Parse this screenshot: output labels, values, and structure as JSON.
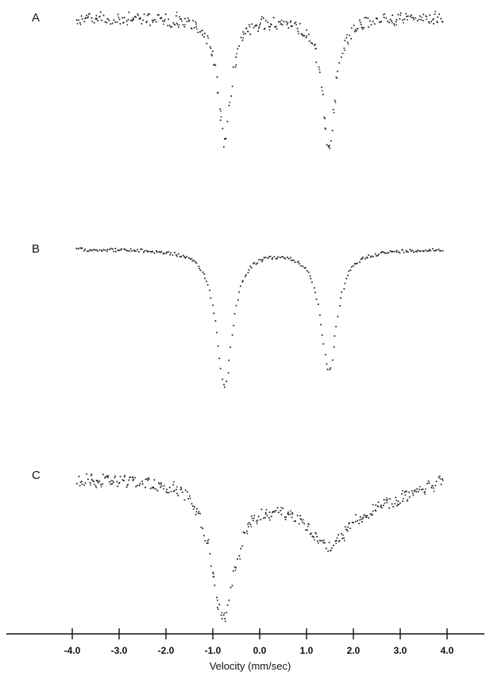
{
  "chart_data": {
    "type": "scatter",
    "xlabel": "Velocity (mm/sec)",
    "xlim": [
      -4.0,
      4.0
    ],
    "xticks": [
      -4.0,
      -3.0,
      -2.0,
      -1.0,
      0.0,
      1.0,
      2.0,
      3.0,
      4.0
    ],
    "xtick_labels": [
      "-4.0",
      "-3.0",
      "-2.0",
      "-1.0",
      "0.0",
      "1.0",
      "2.0",
      "3.0",
      "4.0"
    ],
    "grid": false,
    "point_color": "#222222",
    "panels": [
      {
        "label": "A",
        "baseline": 1.0,
        "noise": 0.05,
        "peaks": [
          {
            "center": -0.75,
            "depth": 1.0,
            "width": 0.34
          },
          {
            "center": 1.47,
            "depth": 1.04,
            "width": 0.34
          }
        ]
      },
      {
        "label": "B",
        "baseline": 1.0,
        "noise": 0.012,
        "peaks": [
          {
            "center": -0.75,
            "depth": 1.0,
            "width": 0.42
          },
          {
            "center": 1.48,
            "depth": 0.89,
            "width": 0.42
          }
        ]
      },
      {
        "label": "C",
        "baseline": 1.0,
        "noise": 0.045,
        "peaks": [
          {
            "center": -0.78,
            "depth": 1.0,
            "width": 0.62
          },
          {
            "center": 1.45,
            "depth": 0.27,
            "width": 0.9
          }
        ]
      }
    ]
  }
}
